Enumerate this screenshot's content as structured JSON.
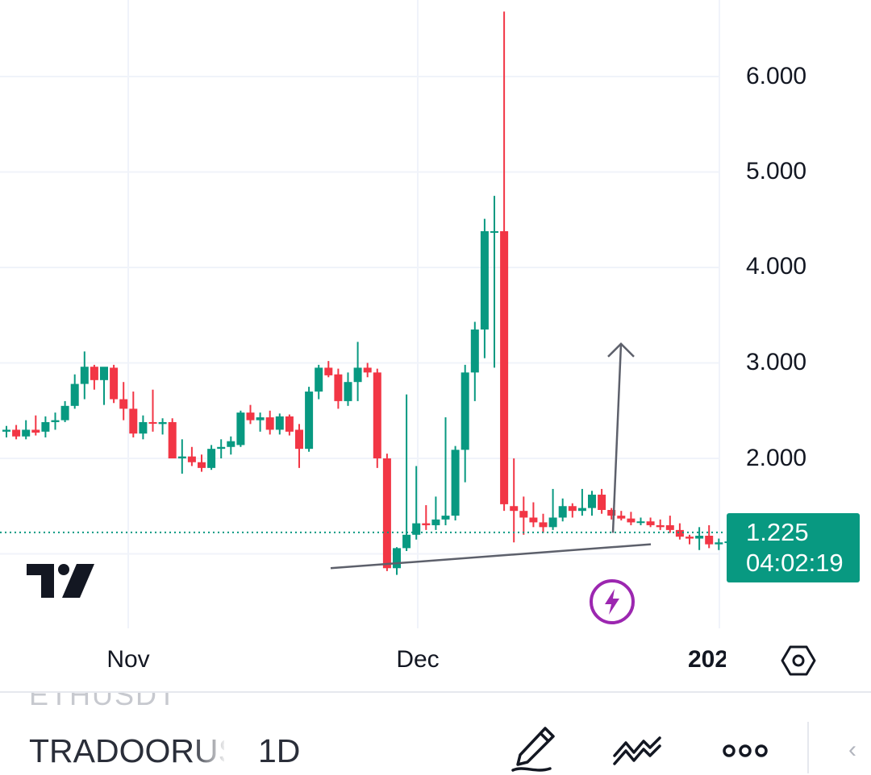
{
  "chart_data": {
    "type": "candlestick",
    "symbol": "TRADOORUSDT",
    "interval": "1D",
    "x_ticks": [
      "Nov",
      "Dec",
      "202"
    ],
    "y_ticks": [
      "2.000",
      "3.000",
      "4.000",
      "5.000",
      "6.000"
    ],
    "y_tick_values": [
      2,
      3,
      4,
      5,
      6
    ],
    "ylim": [
      0.3,
      6.8
    ],
    "grid": true,
    "last_price": "1.225",
    "last_price_value": 1.225,
    "countdown": "04:02:19",
    "candles": [
      [
        2.28,
        2.34,
        2.22,
        2.3
      ],
      [
        2.3,
        2.35,
        2.2,
        2.23
      ],
      [
        2.23,
        2.4,
        2.2,
        2.3
      ],
      [
        2.3,
        2.45,
        2.24,
        2.27
      ],
      [
        2.28,
        2.44,
        2.22,
        2.38
      ],
      [
        2.38,
        2.48,
        2.3,
        2.4
      ],
      [
        2.4,
        2.6,
        2.38,
        2.55
      ],
      [
        2.55,
        2.88,
        2.52,
        2.78
      ],
      [
        2.78,
        3.12,
        2.62,
        2.96
      ],
      [
        2.96,
        2.98,
        2.72,
        2.82
      ],
      [
        2.82,
        2.92,
        2.56,
        2.96
      ],
      [
        2.95,
        2.98,
        2.58,
        2.62
      ],
      [
        2.62,
        2.8,
        2.4,
        2.52
      ],
      [
        2.52,
        2.7,
        2.22,
        2.26
      ],
      [
        2.26,
        2.45,
        2.2,
        2.38
      ],
      [
        2.38,
        2.72,
        2.28,
        2.37
      ],
      [
        2.36,
        2.42,
        2.25,
        2.38
      ],
      [
        2.38,
        2.42,
        2.02,
        2.0
      ],
      [
        2.0,
        2.2,
        1.84,
        2.02
      ],
      [
        2.02,
        2.12,
        1.92,
        1.96
      ],
      [
        1.96,
        2.04,
        1.86,
        1.9
      ],
      [
        1.9,
        2.14,
        1.88,
        2.1
      ],
      [
        2.1,
        2.2,
        2.0,
        2.12
      ],
      [
        2.12,
        2.23,
        2.04,
        2.18
      ],
      [
        2.14,
        2.5,
        2.12,
        2.48
      ],
      [
        2.48,
        2.56,
        2.36,
        2.4
      ],
      [
        2.4,
        2.48,
        2.28,
        2.43
      ],
      [
        2.43,
        2.5,
        2.25,
        2.3
      ],
      [
        2.3,
        2.47,
        2.25,
        2.44
      ],
      [
        2.44,
        2.46,
        2.24,
        2.28
      ],
      [
        2.3,
        2.36,
        1.9,
        2.1
      ],
      [
        2.1,
        2.75,
        2.07,
        2.7
      ],
      [
        2.7,
        2.98,
        2.62,
        2.95
      ],
      [
        2.95,
        3.02,
        2.85,
        2.87
      ],
      [
        2.88,
        2.94,
        2.52,
        2.6
      ],
      [
        2.6,
        2.9,
        2.55,
        2.8
      ],
      [
        2.8,
        3.22,
        2.6,
        2.95
      ],
      [
        2.95,
        3.0,
        2.85,
        2.9
      ],
      [
        2.9,
        2.94,
        1.9,
        2.0
      ],
      [
        2.0,
        2.05,
        0.82,
        0.85
      ],
      [
        0.85,
        1.07,
        0.78,
        1.06
      ],
      [
        1.06,
        2.67,
        1.03,
        1.2
      ],
      [
        1.2,
        1.92,
        1.15,
        1.32
      ],
      [
        1.32,
        1.51,
        1.25,
        1.3
      ],
      [
        1.3,
        1.6,
        1.25,
        1.36
      ],
      [
        1.36,
        2.43,
        1.3,
        1.4
      ],
      [
        1.4,
        2.13,
        1.35,
        2.09
      ],
      [
        2.09,
        2.98,
        1.75,
        2.9
      ],
      [
        2.9,
        3.43,
        2.6,
        3.35
      ],
      [
        3.35,
        4.51,
        3.05,
        4.38
      ],
      [
        4.38,
        4.75,
        2.95,
        4.38
      ],
      [
        4.38,
        6.68,
        1.45,
        1.52
      ],
      [
        1.5,
        2.0,
        1.12,
        1.45
      ],
      [
        1.45,
        1.6,
        1.2,
        1.38
      ],
      [
        1.38,
        1.54,
        1.28,
        1.33
      ],
      [
        1.33,
        1.42,
        1.22,
        1.28
      ],
      [
        1.28,
        1.68,
        1.25,
        1.38
      ],
      [
        1.38,
        1.58,
        1.34,
        1.5
      ],
      [
        1.5,
        1.53,
        1.38,
        1.45
      ],
      [
        1.45,
        1.68,
        1.4,
        1.48
      ],
      [
        1.48,
        1.66,
        1.4,
        1.62
      ],
      [
        1.62,
        1.68,
        1.42,
        1.46
      ],
      [
        1.46,
        1.48,
        1.36,
        1.4
      ],
      [
        1.4,
        1.45,
        1.35,
        1.37
      ],
      [
        1.37,
        1.44,
        1.3,
        1.33
      ],
      [
        1.33,
        1.38,
        1.3,
        1.34
      ],
      [
        1.34,
        1.38,
        1.28,
        1.3
      ],
      [
        1.3,
        1.36,
        1.25,
        1.28
      ],
      [
        1.3,
        1.4,
        1.22,
        1.25
      ],
      [
        1.25,
        1.32,
        1.15,
        1.18
      ],
      [
        1.18,
        1.2,
        1.1,
        1.16
      ],
      [
        1.16,
        1.28,
        1.04,
        1.19
      ],
      [
        1.19,
        1.3,
        1.06,
        1.1
      ],
      [
        1.1,
        1.16,
        1.04,
        1.12
      ],
      [
        1.12,
        1.17,
        1.07,
        1.13
      ],
      [
        1.13,
        1.16,
        1.07,
        1.1
      ],
      [
        1.1,
        1.24,
        1.08,
        1.22
      ]
    ],
    "trendline": [
      [
        1.49,
        0.85
      ],
      [
        16.3,
        1.1
      ]
    ],
    "arrow": [
      [
        1.57,
        1.22
      ],
      [
        1.61,
        3.2
      ]
    ],
    "up_color": "#089981",
    "down_color": "#f23645",
    "price_line_color": "#089981"
  },
  "toolbar": {
    "prev_symbol": "ETHUSDT",
    "symbol": "TRADOORUSDT",
    "interval": "1D"
  },
  "icons": {
    "logo": "tradingview-logo",
    "flash": "lightning-bolt-icon",
    "settings": "hexagon-settings-icon",
    "draw": "pencil-draw-icon",
    "indicators": "indicator-wave-icon",
    "more": "three-dots-icon",
    "back": "chevron-left-icon"
  }
}
